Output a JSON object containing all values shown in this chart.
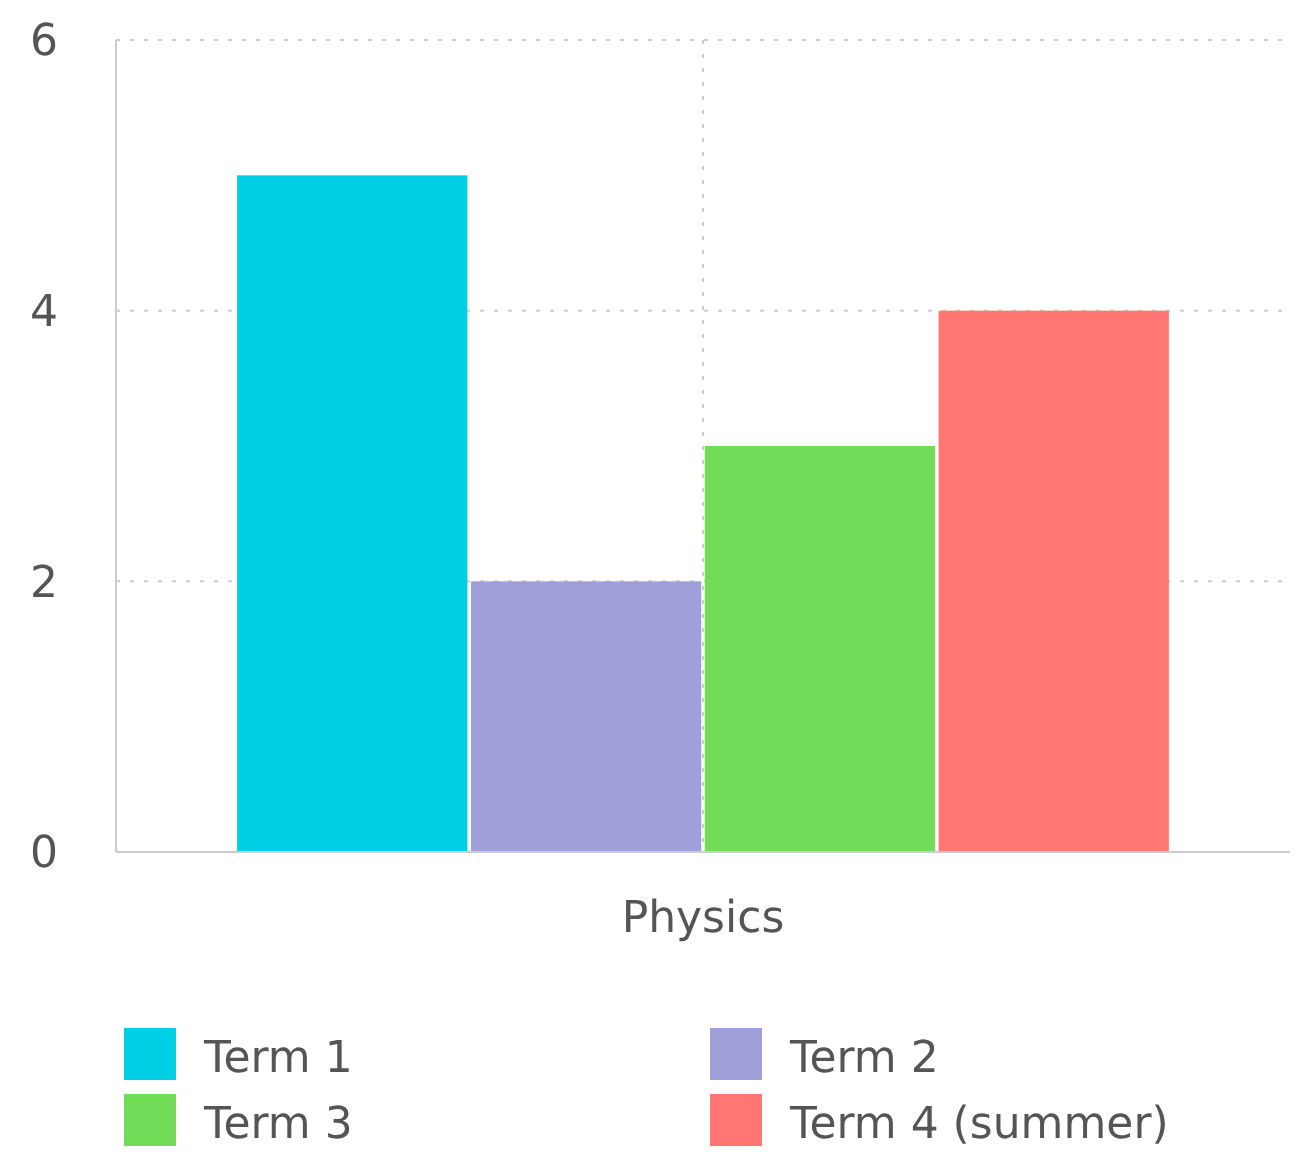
{
  "chart_data": {
    "type": "bar",
    "categories": [
      "Physics"
    ],
    "series": [
      {
        "name": "Term 1",
        "color": "#00cfe6",
        "values": [
          5
        ]
      },
      {
        "name": "Term 2",
        "color": "#9f9fd9",
        "values": [
          2
        ]
      },
      {
        "name": "Term 3",
        "color": "#72dc59",
        "values": [
          3
        ]
      },
      {
        "name": "Term 4 (summer)",
        "color": "#ff7672",
        "values": [
          4
        ]
      }
    ],
    "ylim": [
      0,
      6
    ],
    "yticks": [
      0,
      2,
      4,
      6
    ],
    "grid": true,
    "legend": "bottom"
  }
}
